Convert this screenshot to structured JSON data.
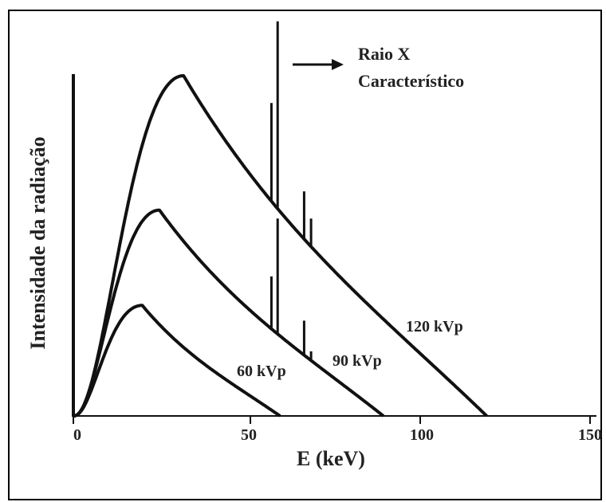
{
  "chart_data": {
    "type": "line",
    "title": "",
    "xlabel": "E (keV)",
    "ylabel": "Intensidade da radiação",
    "xlim": [
      0,
      150
    ],
    "ylim": [
      0,
      100
    ],
    "x_ticks": [
      "0",
      "50",
      "100",
      "150"
    ],
    "y_ticks": [],
    "grid": false,
    "series": [
      {
        "name": "120 kVp",
        "peak_energy": 32,
        "max_energy": 120,
        "peak_intensity": 100,
        "lines": [
          {
            "energy": 57.5,
            "intensity": 92
          },
          {
            "energy": 59.3,
            "intensity": 116
          },
          {
            "energy": 67,
            "intensity": 66
          },
          {
            "energy": 69,
            "intensity": 58
          }
        ]
      },
      {
        "name": "90 kVp",
        "peak_energy": 25,
        "max_energy": 90,
        "peak_intensity": 60.5,
        "lines": [
          {
            "energy": 57.5,
            "intensity": 41
          },
          {
            "energy": 59.3,
            "intensity": 58
          },
          {
            "energy": 67,
            "intensity": 28
          },
          {
            "energy": 69,
            "intensity": 19
          }
        ]
      },
      {
        "name": "60 kVp",
        "peak_energy": 20,
        "max_energy": 60,
        "peak_intensity": 32.5,
        "lines": []
      }
    ],
    "annotations": [
      {
        "text_line1": "Raio X",
        "text_line2": "Característico"
      }
    ],
    "colors": {
      "line": "#111111",
      "text": "#222222",
      "background": "#ffffff"
    }
  }
}
